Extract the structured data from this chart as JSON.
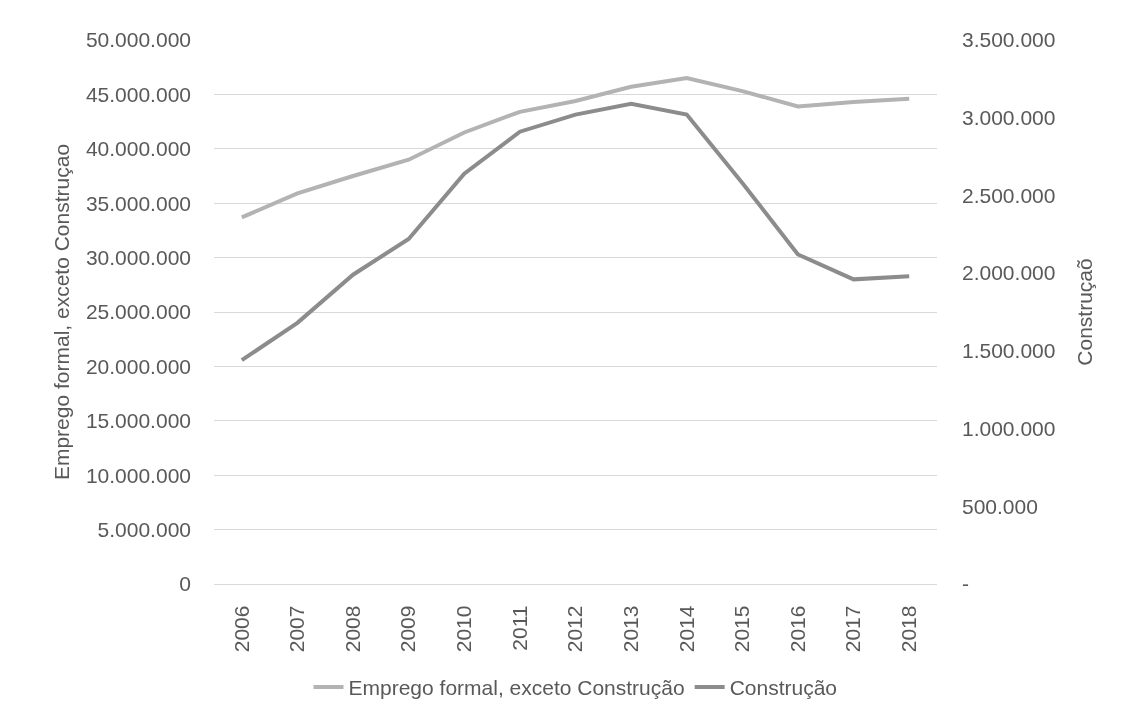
{
  "chart_data": {
    "type": "line",
    "categories": [
      "2006",
      "2007",
      "2008",
      "2009",
      "2010",
      "2011",
      "2012",
      "2013",
      "2014",
      "2015",
      "2016",
      "2017",
      "2018"
    ],
    "series": [
      {
        "name": "Emprego formal, exceto Construção",
        "color": "#b3b3b3",
        "values": [
          33700000,
          35900000,
          37500000,
          39000000,
          41500000,
          43400000,
          44400000,
          45700000,
          46500000,
          45300000,
          43900000,
          44300000,
          44600000
        ]
      },
      {
        "name": "Construção",
        "color": "#8c8c8c",
        "axis": "y2",
        "values": [
          1440000,
          1680000,
          1990000,
          2220000,
          2640000,
          2910000,
          3020000,
          3090000,
          3020000,
          2580000,
          2120000,
          1960000,
          1980000
        ]
      }
    ],
    "ylabel": "Emprego formal, exceto Construçao",
    "y2label": "Construçaõ",
    "ylim": [
      0,
      50000000
    ],
    "yticks": [
      0,
      {
        "value": 5000000,
        "label": "5.000.000"
      },
      {
        "value": 10000000,
        "label": "10.000.000"
      },
      {
        "value": 15000000,
        "label": "15.000.000"
      },
      {
        "value": 20000000,
        "label": "20.000.000"
      },
      {
        "value": 25000000,
        "label": "25.000.000"
      },
      {
        "value": 30000000,
        "label": "30.000.000"
      },
      {
        "value": 35000000,
        "label": "35.000.000"
      },
      {
        "value": 40000000,
        "label": "40.000.000"
      },
      {
        "value": 45000000,
        "label": "45.000.000"
      },
      {
        "value": 50000000,
        "label": "50.000.000"
      }
    ],
    "y2lim": [
      0,
      3500000
    ],
    "y2ticks": [
      {
        "value": 0,
        "label": "-"
      },
      {
        "value": 500000,
        "label": "500.000"
      },
      {
        "value": 1000000,
        "label": "1.000.000"
      },
      {
        "value": 1500000,
        "label": "1.500.000"
      },
      {
        "value": 2000000,
        "label": "2.000.000"
      },
      {
        "value": 2500000,
        "label": "2.500.000"
      },
      {
        "value": 3000000,
        "label": "3.000.000"
      },
      {
        "value": 3500000,
        "label": "3.500.000"
      }
    ],
    "grid": "y",
    "legend": "bottom",
    "line_style": "solid"
  }
}
